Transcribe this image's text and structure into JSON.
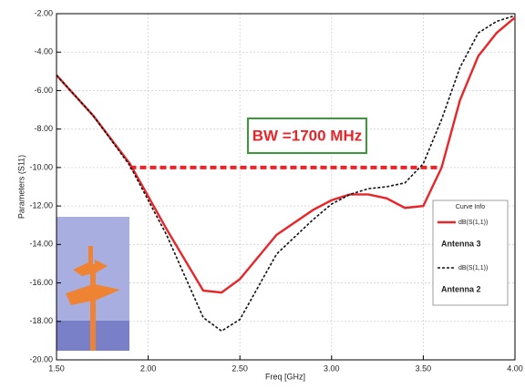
{
  "chart_data": {
    "type": "line",
    "xlabel": "Freq [GHz]",
    "ylabel": "Parameters (S11)",
    "xlim": [
      1.5,
      4.0
    ],
    "ylim": [
      -20,
      -2
    ],
    "xticks": [
      {
        "value": 1.5,
        "label": "1.50"
      },
      {
        "value": 2.0,
        "label": "2.00"
      },
      {
        "value": 2.5,
        "label": "2.50"
      },
      {
        "value": 3.0,
        "label": "3.00"
      },
      {
        "value": 3.5,
        "label": "3.50"
      },
      {
        "value": 4.0,
        "label": "4.00"
      }
    ],
    "yticks": [
      {
        "value": -2,
        "label": "-2.00"
      },
      {
        "value": -4,
        "label": "-4.00"
      },
      {
        "value": -6,
        "label": "-6.00"
      },
      {
        "value": -8,
        "label": "-8.00"
      },
      {
        "value": -10,
        "label": "-10.00"
      },
      {
        "value": -12,
        "label": "-12.00"
      },
      {
        "value": -14,
        "label": "-14.00"
      },
      {
        "value": -16,
        "label": "-16.00"
      },
      {
        "value": -18,
        "label": "-18.00"
      },
      {
        "value": -20,
        "label": "-20.00"
      }
    ],
    "grid": true,
    "legend_title": "Curve Info",
    "x": [
      1.5,
      1.7,
      1.9,
      2.1,
      2.3,
      2.4,
      2.5,
      2.7,
      2.9,
      3.0,
      3.1,
      3.2,
      3.3,
      3.4,
      3.5,
      3.6,
      3.7,
      3.8,
      3.9,
      4.0
    ],
    "series": [
      {
        "name": "Antenna 3",
        "legend_label": "dB(S(1,1))",
        "color": "#e8262a",
        "dashed": false,
        "values": [
          -5.2,
          -7.3,
          -9.8,
          -13.2,
          -16.4,
          -16.5,
          -15.8,
          -13.5,
          -12.2,
          -11.7,
          -11.4,
          -11.4,
          -11.6,
          -12.1,
          -12.0,
          -10.0,
          -6.5,
          -4.2,
          -3.0,
          -2.2
        ]
      },
      {
        "name": "Antenna 2",
        "legend_label": "dB(S(1,1))",
        "color": "#111111",
        "dashed": true,
        "values": [
          -5.2,
          -7.3,
          -9.9,
          -13.5,
          -17.8,
          -18.5,
          -17.9,
          -14.5,
          -12.7,
          -11.9,
          -11.4,
          -11.1,
          -11.0,
          -10.8,
          -9.8,
          -7.5,
          -4.8,
          -3.0,
          -2.4,
          -2.1
        ]
      }
    ],
    "bw_line": {
      "x": [
        1.9,
        3.6
      ],
      "y": -10,
      "color": "#e8262a"
    },
    "annotation": "BW =1700 MHz"
  }
}
